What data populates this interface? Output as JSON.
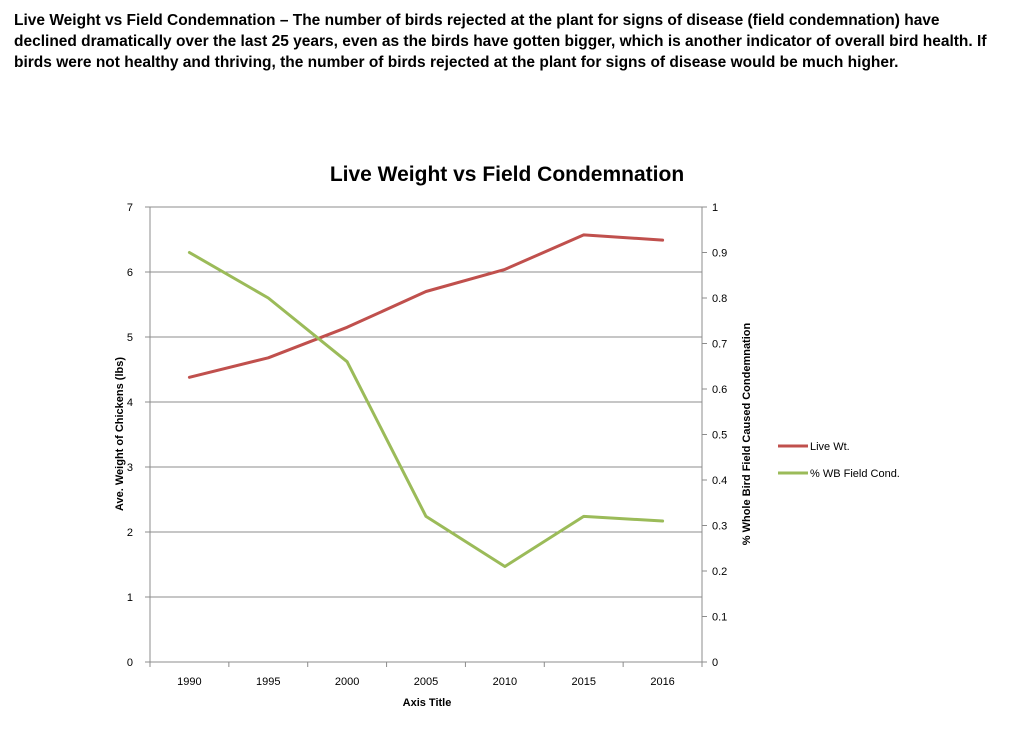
{
  "intro_text": "Live Weight vs Field Condemnation – The number of birds rejected at the plant for signs of disease (field condemnation) have declined dramatically over the last 25 years, even as the birds have gotten bigger, which is another indicator of overall bird health. If birds were not healthy and thriving, the number of birds rejected at the plant for signs of disease would be much higher.",
  "chart_data": {
    "type": "line",
    "title": "Live Weight vs Field Condemnation",
    "xlabel": "Axis Title",
    "ylabel": "Ave. Weight of Chickens (lbs)",
    "y2label": "% Whole Bird Field Caused Condemnation",
    "categories": [
      "1990",
      "1995",
      "2000",
      "2005",
      "2010",
      "2015",
      "2016"
    ],
    "ylim": [
      0,
      7
    ],
    "y2lim": [
      0,
      1
    ],
    "yticks": [
      "0",
      "1",
      "2",
      "3",
      "4",
      "5",
      "6",
      "7"
    ],
    "y2ticks": [
      "0",
      "0.1",
      "0.2",
      "0.3",
      "0.4",
      "0.5",
      "0.6",
      "0.7",
      "0.8",
      "0.9",
      "1"
    ],
    "grid": true,
    "legend_position": "right",
    "series": [
      {
        "name": "Live Wt.",
        "axis": "left",
        "color": "#c0504d",
        "values": [
          4.38,
          4.68,
          5.15,
          5.7,
          6.04,
          6.57,
          6.49
        ]
      },
      {
        "name": "% WB Field Cond.",
        "axis": "right",
        "color": "#9bbb59",
        "values": [
          0.9,
          0.8,
          0.66,
          0.32,
          0.21,
          0.32,
          0.31
        ]
      }
    ]
  }
}
